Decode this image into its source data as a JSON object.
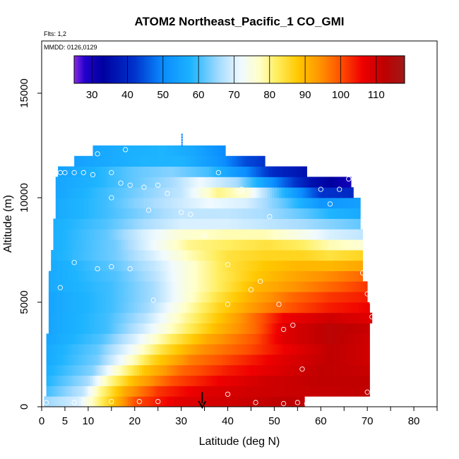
{
  "chart_data": {
    "type": "heatmap",
    "title": "ATOM2 Northeast_Pacific_1 CO_GMI",
    "notes": [
      "Flts: 1,2",
      "MMDD: 0126,0129"
    ],
    "xlabel": "Latitude (deg N)",
    "ylabel": "Altitude (m)",
    "xlim": [
      0,
      85
    ],
    "ylim": [
      0,
      17500
    ],
    "xticks": [
      0,
      5,
      10,
      20,
      30,
      40,
      50,
      60,
      70,
      80
    ],
    "yticks": [
      0,
      5000,
      10000,
      15000
    ],
    "colorbar": {
      "range": [
        25,
        118
      ],
      "ticks": [
        30,
        40,
        50,
        60,
        70,
        80,
        90,
        100,
        110
      ],
      "placement": "top-inside",
      "colors": [
        {
          "v": 25,
          "c": "#8a2be2"
        },
        {
          "v": 28,
          "c": "#2200cc"
        },
        {
          "v": 33,
          "c": "#0000a0"
        },
        {
          "v": 42,
          "c": "#0033cc"
        },
        {
          "v": 50,
          "c": "#0a8cff"
        },
        {
          "v": 58,
          "c": "#1eb4ff"
        },
        {
          "v": 66,
          "c": "#a8dcff"
        },
        {
          "v": 72,
          "c": "#f0faff"
        },
        {
          "v": 77,
          "c": "#ffffc8"
        },
        {
          "v": 82,
          "c": "#ffee60"
        },
        {
          "v": 88,
          "c": "#ffc800"
        },
        {
          "v": 94,
          "c": "#ff9600"
        },
        {
          "v": 100,
          "c": "#ff5000"
        },
        {
          "v": 106,
          "c": "#f00000"
        },
        {
          "v": 112,
          "c": "#c00000"
        },
        {
          "v": 118,
          "c": "#a01818"
        }
      ]
    },
    "layers": [
      {
        "alt": 250,
        "lat": [
          0.5,
          56.5
        ],
        "values": [
          [
            0.5,
            65
          ],
          [
            8,
            70
          ],
          [
            12,
            80
          ],
          [
            20,
            100
          ],
          [
            30,
            108
          ],
          [
            40,
            110
          ],
          [
            50,
            112
          ],
          [
            56.5,
            112
          ]
        ]
      },
      {
        "alt": 750,
        "lat": [
          1,
          70.5
        ],
        "values": [
          [
            1,
            60
          ],
          [
            9,
            68
          ],
          [
            12,
            78
          ],
          [
            18,
            92
          ],
          [
            25,
            102
          ],
          [
            35,
            108
          ],
          [
            45,
            110
          ],
          [
            55,
            111
          ],
          [
            70.5,
            112
          ]
        ]
      },
      {
        "alt": 1250,
        "lat": [
          1,
          70.5
        ],
        "values": [
          [
            1,
            58
          ],
          [
            10,
            66
          ],
          [
            14,
            78
          ],
          [
            20,
            90
          ],
          [
            28,
            100
          ],
          [
            38,
            106
          ],
          [
            48,
            110
          ],
          [
            60,
            112
          ],
          [
            70.5,
            112
          ]
        ]
      },
      {
        "alt": 1750,
        "lat": [
          1,
          70.5
        ],
        "values": [
          [
            1,
            57
          ],
          [
            11,
            64
          ],
          [
            16,
            76
          ],
          [
            22,
            88
          ],
          [
            30,
            98
          ],
          [
            40,
            104
          ],
          [
            50,
            108
          ],
          [
            60,
            112
          ],
          [
            70.5,
            111
          ]
        ]
      },
      {
        "alt": 2250,
        "lat": [
          1,
          70.5
        ],
        "values": [
          [
            1,
            56
          ],
          [
            12,
            63
          ],
          [
            18,
            74
          ],
          [
            24,
            86
          ],
          [
            32,
            96
          ],
          [
            42,
            102
          ],
          [
            52,
            108
          ],
          [
            62,
            112
          ],
          [
            70.5,
            110
          ]
        ]
      },
      {
        "alt": 2750,
        "lat": [
          1,
          70.5
        ],
        "values": [
          [
            1,
            56
          ],
          [
            12,
            62
          ],
          [
            19,
            72
          ],
          [
            26,
            84
          ],
          [
            34,
            94
          ],
          [
            44,
            100
          ],
          [
            52,
            106
          ],
          [
            62,
            112
          ],
          [
            70.5,
            110
          ]
        ]
      },
      {
        "alt": 3250,
        "lat": [
          1,
          70.5
        ],
        "values": [
          [
            1,
            55
          ],
          [
            13,
            61
          ],
          [
            20,
            70
          ],
          [
            28,
            82
          ],
          [
            36,
            92
          ],
          [
            46,
            100
          ],
          [
            52,
            108
          ],
          [
            62,
            113
          ],
          [
            70.5,
            110
          ]
        ]
      },
      {
        "alt": 3750,
        "lat": [
          1.5,
          70.5
        ],
        "values": [
          [
            1.5,
            55
          ],
          [
            14,
            60
          ],
          [
            21,
            68
          ],
          [
            30,
            80
          ],
          [
            38,
            90
          ],
          [
            46,
            98
          ],
          [
            52,
            108
          ],
          [
            62,
            113
          ],
          [
            70.5,
            111
          ]
        ]
      },
      {
        "alt": 4250,
        "lat": [
          1.5,
          71
        ],
        "values": [
          [
            1.5,
            55
          ],
          [
            14,
            60
          ],
          [
            22,
            67
          ],
          [
            30,
            78
          ],
          [
            38,
            88
          ],
          [
            46,
            98
          ],
          [
            52,
            106
          ],
          [
            62,
            110
          ],
          [
            71,
            108
          ]
        ]
      },
      {
        "alt": 4750,
        "lat": [
          1.5,
          70.5
        ],
        "values": [
          [
            1.5,
            55
          ],
          [
            15,
            60
          ],
          [
            23,
            66
          ],
          [
            30,
            76
          ],
          [
            38,
            86
          ],
          [
            46,
            94
          ],
          [
            54,
            100
          ],
          [
            62,
            104
          ],
          [
            70.5,
            106
          ]
        ]
      },
      {
        "alt": 5250,
        "lat": [
          1.5,
          70
        ],
        "values": [
          [
            1.5,
            55
          ],
          [
            15,
            60
          ],
          [
            24,
            66
          ],
          [
            30,
            74
          ],
          [
            38,
            84
          ],
          [
            46,
            92
          ],
          [
            54,
            98
          ],
          [
            62,
            102
          ],
          [
            70,
            104
          ]
        ]
      },
      {
        "alt": 5750,
        "lat": [
          1.5,
          70
        ],
        "values": [
          [
            1.5,
            56
          ],
          [
            15,
            60
          ],
          [
            24,
            66
          ],
          [
            30,
            74
          ],
          [
            38,
            82
          ],
          [
            46,
            90
          ],
          [
            54,
            94
          ],
          [
            62,
            98
          ],
          [
            70,
            102
          ]
        ]
      },
      {
        "alt": 6250,
        "lat": [
          1.5,
          69
        ],
        "values": [
          [
            1.5,
            56
          ],
          [
            16,
            61
          ],
          [
            24,
            67
          ],
          [
            30,
            74
          ],
          [
            38,
            82
          ],
          [
            46,
            88
          ],
          [
            54,
            92
          ],
          [
            62,
            95
          ],
          [
            69,
            98
          ]
        ]
      },
      {
        "alt": 6750,
        "lat": [
          2,
          69
        ],
        "values": [
          [
            2,
            56
          ],
          [
            16,
            62
          ],
          [
            24,
            68
          ],
          [
            32,
            76
          ],
          [
            40,
            84
          ],
          [
            48,
            88
          ],
          [
            55,
            90
          ],
          [
            62,
            90
          ],
          [
            69,
            92
          ]
        ]
      },
      {
        "alt": 7250,
        "lat": [
          2,
          69
        ],
        "values": [
          [
            2,
            57
          ],
          [
            16,
            63
          ],
          [
            24,
            70
          ],
          [
            32,
            78
          ],
          [
            40,
            84
          ],
          [
            48,
            86
          ],
          [
            56,
            86
          ],
          [
            62,
            84
          ],
          [
            69,
            86
          ]
        ]
      },
      {
        "alt": 7750,
        "lat": [
          2.5,
          69
        ],
        "values": [
          [
            2.5,
            57
          ],
          [
            16,
            63
          ],
          [
            24,
            72
          ],
          [
            32,
            80
          ],
          [
            40,
            82
          ],
          [
            48,
            84
          ],
          [
            56,
            82
          ],
          [
            62,
            78
          ],
          [
            69,
            76
          ]
        ]
      },
      {
        "alt": 8250,
        "lat": [
          2.5,
          69
        ],
        "values": [
          [
            2.5,
            57
          ],
          [
            14,
            62
          ],
          [
            22,
            70
          ],
          [
            30,
            76
          ],
          [
            40,
            78
          ],
          [
            48,
            78
          ],
          [
            56,
            74
          ],
          [
            62,
            70
          ],
          [
            69,
            68
          ]
        ]
      },
      {
        "alt": 8750,
        "lat": [
          2.5,
          68.5
        ],
        "values": [
          [
            2.5,
            57
          ],
          [
            14,
            61
          ],
          [
            22,
            66
          ],
          [
            30,
            70
          ],
          [
            40,
            70
          ],
          [
            48,
            68
          ],
          [
            56,
            66
          ],
          [
            62,
            64
          ],
          [
            68.5,
            62
          ]
        ]
      },
      {
        "alt": 9250,
        "lat": [
          3,
          68.5
        ],
        "values": [
          [
            3,
            56
          ],
          [
            14,
            60
          ],
          [
            22,
            64
          ],
          [
            30,
            68
          ],
          [
            40,
            68
          ],
          [
            48,
            66
          ],
          [
            56,
            62
          ],
          [
            62,
            58
          ],
          [
            68.5,
            56
          ]
        ]
      },
      {
        "alt": 9750,
        "lat": [
          3,
          68.5
        ],
        "values": [
          [
            3,
            56
          ],
          [
            14,
            60
          ],
          [
            20,
            64
          ],
          [
            28,
            68
          ],
          [
            36,
            72
          ],
          [
            44,
            70
          ],
          [
            52,
            62
          ],
          [
            60,
            52
          ],
          [
            68.5,
            54
          ]
        ]
      },
      {
        "alt": 10250,
        "lat": [
          3,
          67
        ],
        "values": [
          [
            3,
            55
          ],
          [
            14,
            60
          ],
          [
            22,
            64
          ],
          [
            30,
            68
          ],
          [
            38,
            80
          ],
          [
            44,
            76
          ],
          [
            52,
            58
          ],
          [
            60,
            42
          ],
          [
            67,
            40
          ]
        ]
      },
      {
        "alt": 10750,
        "lat": [
          3,
          66.5
        ],
        "values": [
          [
            3,
            55
          ],
          [
            12,
            58
          ],
          [
            20,
            62
          ],
          [
            28,
            66
          ],
          [
            34,
            72
          ],
          [
            42,
            66
          ],
          [
            50,
            50
          ],
          [
            58,
            36
          ],
          [
            66.5,
            30
          ]
        ]
      },
      {
        "alt": 11250,
        "lat": [
          3.5,
          57
        ],
        "values": [
          [
            3.5,
            54
          ],
          [
            12,
            58
          ],
          [
            20,
            62
          ],
          [
            28,
            64
          ],
          [
            36,
            60
          ],
          [
            44,
            50
          ],
          [
            50,
            40
          ],
          [
            57,
            36
          ]
        ]
      },
      {
        "alt": 11750,
        "lat": [
          7,
          48
        ],
        "values": [
          [
            7,
            54
          ],
          [
            14,
            56
          ],
          [
            22,
            58
          ],
          [
            30,
            58
          ],
          [
            38,
            52
          ],
          [
            44,
            44
          ],
          [
            48,
            42
          ]
        ]
      },
      {
        "alt": 12250,
        "lat": [
          11,
          39.5
        ],
        "values": [
          [
            11,
            55
          ],
          [
            18,
            57
          ],
          [
            26,
            58
          ],
          [
            32,
            56
          ],
          [
            39.5,
            50
          ]
        ]
      }
    ],
    "flight_points": [
      [
        1,
        6500
      ],
      [
        1,
        6700
      ],
      [
        4,
        5700
      ],
      [
        7,
        6900
      ],
      [
        5,
        11200
      ],
      [
        4,
        11200
      ],
      [
        2,
        11100
      ],
      [
        7,
        11200
      ],
      [
        9,
        11200
      ],
      [
        11,
        11100
      ],
      [
        12,
        12100
      ],
      [
        15,
        11200
      ],
      [
        18,
        12300
      ],
      [
        15,
        10000
      ],
      [
        17,
        10700
      ],
      [
        19,
        10600
      ],
      [
        22,
        10500
      ],
      [
        25,
        10600
      ],
      [
        27,
        10200
      ],
      [
        23,
        9400
      ],
      [
        30,
        9300
      ],
      [
        32,
        9200
      ],
      [
        35,
        8200
      ],
      [
        40,
        6800
      ],
      [
        42,
        10300
      ],
      [
        43,
        10400
      ],
      [
        49,
        9100
      ],
      [
        45,
        5600
      ],
      [
        47,
        6000
      ],
      [
        40,
        4900
      ],
      [
        51,
        4900
      ],
      [
        52,
        3700
      ],
      [
        54,
        3900
      ],
      [
        56,
        1800
      ],
      [
        55,
        200
      ],
      [
        46,
        200
      ],
      [
        52,
        150
      ],
      [
        57,
        150
      ],
      [
        40,
        600
      ],
      [
        69,
        6400
      ],
      [
        70,
        5400
      ],
      [
        71,
        5000
      ],
      [
        71,
        4300
      ],
      [
        70,
        700
      ],
      [
        60,
        10400
      ],
      [
        62,
        9700
      ],
      [
        64,
        10400
      ],
      [
        66,
        10900
      ],
      [
        38,
        11200
      ],
      [
        43,
        10300
      ],
      [
        19,
        6600
      ],
      [
        15,
        6700
      ],
      [
        12,
        6600
      ],
      [
        24,
        5100
      ],
      [
        7,
        200
      ],
      [
        15,
        250
      ],
      [
        21,
        250
      ],
      [
        25,
        250
      ],
      [
        1,
        200
      ]
    ],
    "markers": [
      {
        "type": "arrow-down",
        "x": 34.5,
        "y_top": 700,
        "y_bottom": 0
      }
    ]
  }
}
